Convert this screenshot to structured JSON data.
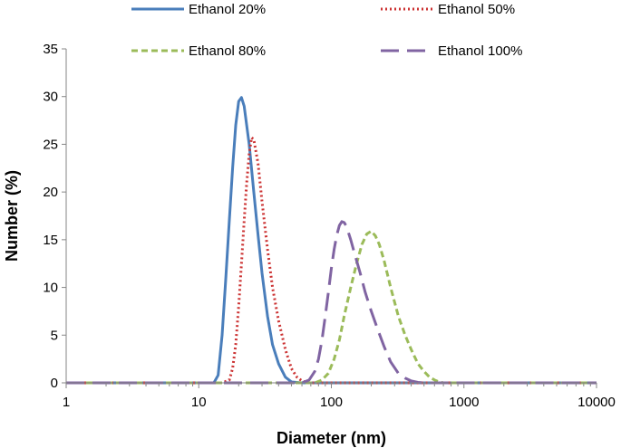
{
  "chart_data": {
    "type": "line",
    "title": "",
    "xlabel": "Diameter (nm)",
    "ylabel": "Number (%)",
    "x_scale": "log",
    "xlim": [
      1,
      10000
    ],
    "ylim": [
      0,
      35
    ],
    "x_ticks": [
      "1",
      "10",
      "100",
      "1000",
      "10000"
    ],
    "y_ticks": [
      "0",
      "5",
      "10",
      "15",
      "20",
      "25",
      "30",
      "35"
    ],
    "grid": false,
    "legend_position": "top",
    "series": [
      {
        "name": "Ethanol 20%",
        "color": "#4a7ebb",
        "dash": "solid",
        "x": [
          1,
          10,
          13,
          14,
          15,
          16,
          17,
          18,
          19,
          20,
          21,
          22,
          24,
          26,
          28,
          30,
          33,
          36,
          40,
          45,
          50,
          60,
          10000
        ],
        "y": [
          0,
          0,
          0,
          0.8,
          5,
          11,
          17,
          22.5,
          27,
          29.5,
          29.9,
          29,
          25,
          20,
          15.5,
          11.5,
          7,
          4,
          2,
          0.6,
          0.1,
          0,
          0
        ]
      },
      {
        "name": "Ethanol 50%",
        "color": "#cc3333",
        "dash": "dotted",
        "x": [
          1,
          15,
          17,
          18,
          19,
          20,
          21,
          22,
          23,
          24,
          25,
          26,
          28,
          30,
          33,
          36,
          40,
          45,
          50,
          55,
          60,
          65,
          70,
          10000
        ],
        "y": [
          0,
          0,
          0.3,
          1.5,
          4,
          8,
          12.5,
          17,
          21,
          24,
          25.7,
          25.5,
          23,
          19,
          14,
          10,
          6.5,
          3.5,
          1.5,
          0.6,
          0.2,
          0.05,
          0,
          0
        ]
      },
      {
        "name": "Ethanol 80%",
        "color": "#9bbb59",
        "dash": "dashed",
        "x": [
          1,
          75,
          85,
          95,
          105,
          115,
          125,
          140,
          155,
          170,
          185,
          200,
          215,
          230,
          250,
          280,
          320,
          360,
          400,
          450,
          500,
          550,
          600,
          650,
          700,
          10000
        ],
        "y": [
          0,
          0,
          0.3,
          1,
          2.5,
          4.5,
          7,
          10,
          12.5,
          14.5,
          15.6,
          15.9,
          15.4,
          14.5,
          12.8,
          10,
          7,
          5,
          3.5,
          2,
          1.2,
          0.6,
          0.3,
          0.1,
          0,
          0
        ]
      },
      {
        "name": "Ethanol 100%",
        "color": "#8064a2",
        "dash": "longdash",
        "x": [
          1,
          60,
          68,
          75,
          80,
          85,
          90,
          95,
          100,
          105,
          110,
          115,
          120,
          125,
          130,
          140,
          150,
          165,
          180,
          200,
          225,
          250,
          280,
          320,
          360,
          400,
          450,
          500,
          10000
        ],
        "y": [
          0,
          0,
          0.3,
          1.2,
          2.5,
          4.5,
          7,
          9.5,
          12,
          14,
          15.5,
          16.5,
          16.9,
          16.8,
          16.4,
          15,
          13.5,
          11.5,
          9.5,
          7.5,
          5.5,
          3.8,
          2.2,
          1,
          0.5,
          0.2,
          0.05,
          0,
          0
        ]
      }
    ]
  }
}
